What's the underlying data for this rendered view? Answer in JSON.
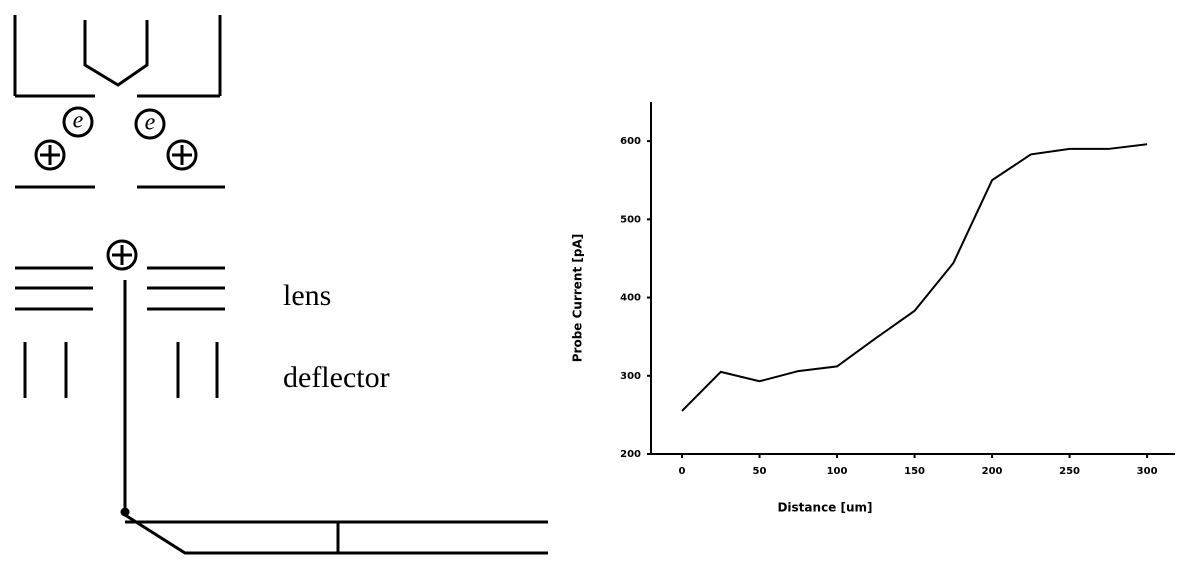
{
  "chart_data": {
    "type": "line",
    "xlabel": "Distance [um]",
    "ylabel": "Probe Current [pA]",
    "x": [
      0,
      25,
      50,
      75,
      100,
      125,
      150,
      175,
      200,
      225,
      250,
      275,
      300
    ],
    "series": [
      {
        "color": "#000000",
        "values": [
          255,
          305,
          293,
          306,
          312,
          348,
          383,
          444,
          550,
          583,
          590,
          590,
          596
        ]
      }
    ],
    "xlim": [
      -20,
      318
    ],
    "ylim": [
      200,
      650
    ],
    "xticks": [
      0,
      50,
      100,
      150,
      200,
      250,
      300
    ],
    "yticks": [
      200,
      300,
      400,
      500,
      600
    ],
    "grid": false
  },
  "diagram": {
    "particles": [
      "e",
      "e"
    ],
    "labels": [
      "lens",
      "deflector"
    ]
  }
}
